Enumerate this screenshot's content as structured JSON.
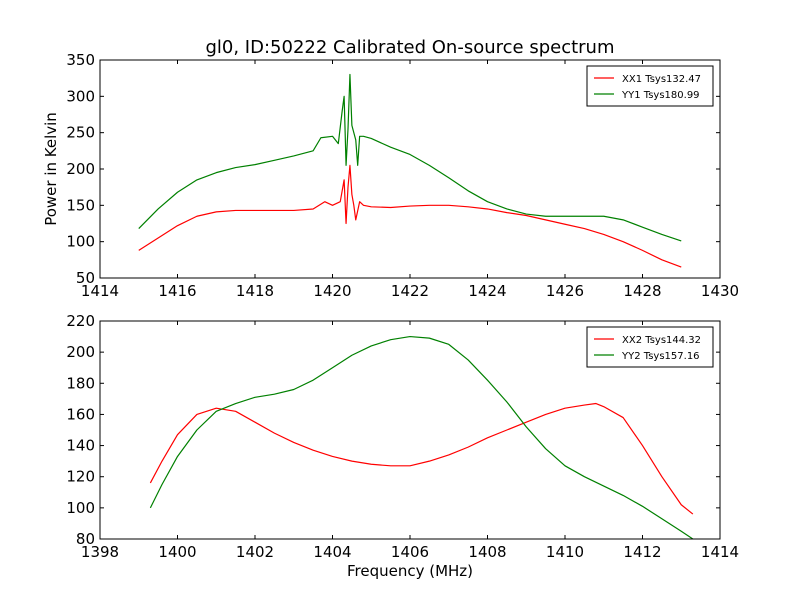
{
  "chart_data": [
    {
      "type": "line",
      "title": "gl0, ID:50222 Calibrated On-source spectrum",
      "xlabel": "",
      "ylabel": "Power in Kelvin",
      "xlim": [
        1414,
        1430
      ],
      "ylim": [
        50,
        350
      ],
      "xticks": [
        "1414",
        "1416",
        "1418",
        "1420",
        "1422",
        "1424",
        "1426",
        "1428",
        "1430"
      ],
      "yticks": [
        "50",
        "100",
        "150",
        "200",
        "250",
        "300",
        "350"
      ],
      "grid": false,
      "legend": "top-right",
      "series": [
        {
          "name": "XX1 Tsys132.47",
          "color": "#ff0000",
          "x": [
            1415.0,
            1415.5,
            1416.0,
            1416.5,
            1417.0,
            1417.5,
            1418.0,
            1418.5,
            1419.0,
            1419.5,
            1419.8,
            1420.0,
            1420.2,
            1420.3,
            1420.35,
            1420.4,
            1420.45,
            1420.5,
            1420.55,
            1420.6,
            1420.7,
            1420.8,
            1421.0,
            1421.5,
            1422.0,
            1422.5,
            1423.0,
            1423.5,
            1424.0,
            1424.5,
            1425.0,
            1425.5,
            1426.0,
            1426.5,
            1427.0,
            1427.5,
            1428.0,
            1428.5,
            1429.0
          ],
          "y": [
            88,
            105,
            122,
            135,
            141,
            143,
            143,
            143,
            143,
            145,
            155,
            150,
            155,
            185,
            125,
            175,
            205,
            165,
            150,
            130,
            155,
            150,
            148,
            147,
            149,
            150,
            150,
            148,
            145,
            140,
            136,
            130,
            124,
            118,
            110,
            100,
            88,
            75,
            65
          ]
        },
        {
          "name": "YY1 Tsys180.99",
          "color": "#008000",
          "x": [
            1415.0,
            1415.5,
            1416.0,
            1416.5,
            1417.0,
            1417.5,
            1418.0,
            1418.5,
            1419.0,
            1419.5,
            1419.7,
            1420.0,
            1420.15,
            1420.25,
            1420.3,
            1420.35,
            1420.4,
            1420.45,
            1420.5,
            1420.6,
            1420.65,
            1420.7,
            1420.8,
            1421.0,
            1421.5,
            1422.0,
            1422.5,
            1423.0,
            1423.5,
            1424.0,
            1424.5,
            1425.0,
            1425.5,
            1426.0,
            1426.5,
            1427.0,
            1427.5,
            1428.0,
            1428.5,
            1429.0
          ],
          "y": [
            118,
            145,
            168,
            185,
            195,
            202,
            206,
            212,
            218,
            225,
            243,
            245,
            235,
            280,
            300,
            205,
            255,
            330,
            260,
            240,
            205,
            245,
            245,
            242,
            230,
            220,
            205,
            188,
            170,
            155,
            145,
            138,
            135,
            135,
            135,
            135,
            130,
            120,
            110,
            101
          ]
        }
      ]
    },
    {
      "type": "line",
      "title": "",
      "xlabel": "Frequency (MHz)",
      "ylabel": "",
      "xlim": [
        1398,
        1414
      ],
      "ylim": [
        80,
        220
      ],
      "xticks": [
        "1398",
        "1400",
        "1402",
        "1404",
        "1406",
        "1408",
        "1410",
        "1412",
        "1414"
      ],
      "yticks": [
        "80",
        "100",
        "120",
        "140",
        "160",
        "180",
        "200",
        "220"
      ],
      "grid": false,
      "legend": "top-right",
      "series": [
        {
          "name": "XX2 Tsys144.32",
          "color": "#ff0000",
          "x": [
            1399.3,
            1399.6,
            1400.0,
            1400.5,
            1401.0,
            1401.5,
            1402.0,
            1402.5,
            1403.0,
            1403.5,
            1404.0,
            1404.5,
            1405.0,
            1405.5,
            1406.0,
            1406.5,
            1407.0,
            1407.5,
            1408.0,
            1408.5,
            1409.0,
            1409.5,
            1410.0,
            1410.5,
            1410.8,
            1411.0,
            1411.5,
            1412.0,
            1412.5,
            1413.0,
            1413.3
          ],
          "y": [
            116,
            130,
            147,
            160,
            164,
            162,
            155,
            148,
            142,
            137,
            133,
            130,
            128,
            127,
            127,
            130,
            134,
            139,
            145,
            150,
            155,
            160,
            164,
            166,
            167,
            165,
            158,
            140,
            120,
            102,
            96
          ]
        },
        {
          "name": "YY2 Tsys157.16",
          "color": "#008000",
          "x": [
            1399.3,
            1399.6,
            1400.0,
            1400.5,
            1401.0,
            1401.5,
            1402.0,
            1402.5,
            1403.0,
            1403.5,
            1404.0,
            1404.5,
            1405.0,
            1405.5,
            1406.0,
            1406.5,
            1407.0,
            1407.5,
            1408.0,
            1408.5,
            1409.0,
            1409.5,
            1410.0,
            1410.5,
            1411.0,
            1411.5,
            1412.0,
            1412.5,
            1413.0,
            1413.3
          ],
          "y": [
            100,
            115,
            133,
            150,
            162,
            167,
            171,
            173,
            176,
            182,
            190,
            198,
            204,
            208,
            210,
            209,
            205,
            195,
            182,
            168,
            152,
            138,
            127,
            120,
            114,
            108,
            101,
            93,
            85,
            80
          ]
        }
      ]
    }
  ]
}
